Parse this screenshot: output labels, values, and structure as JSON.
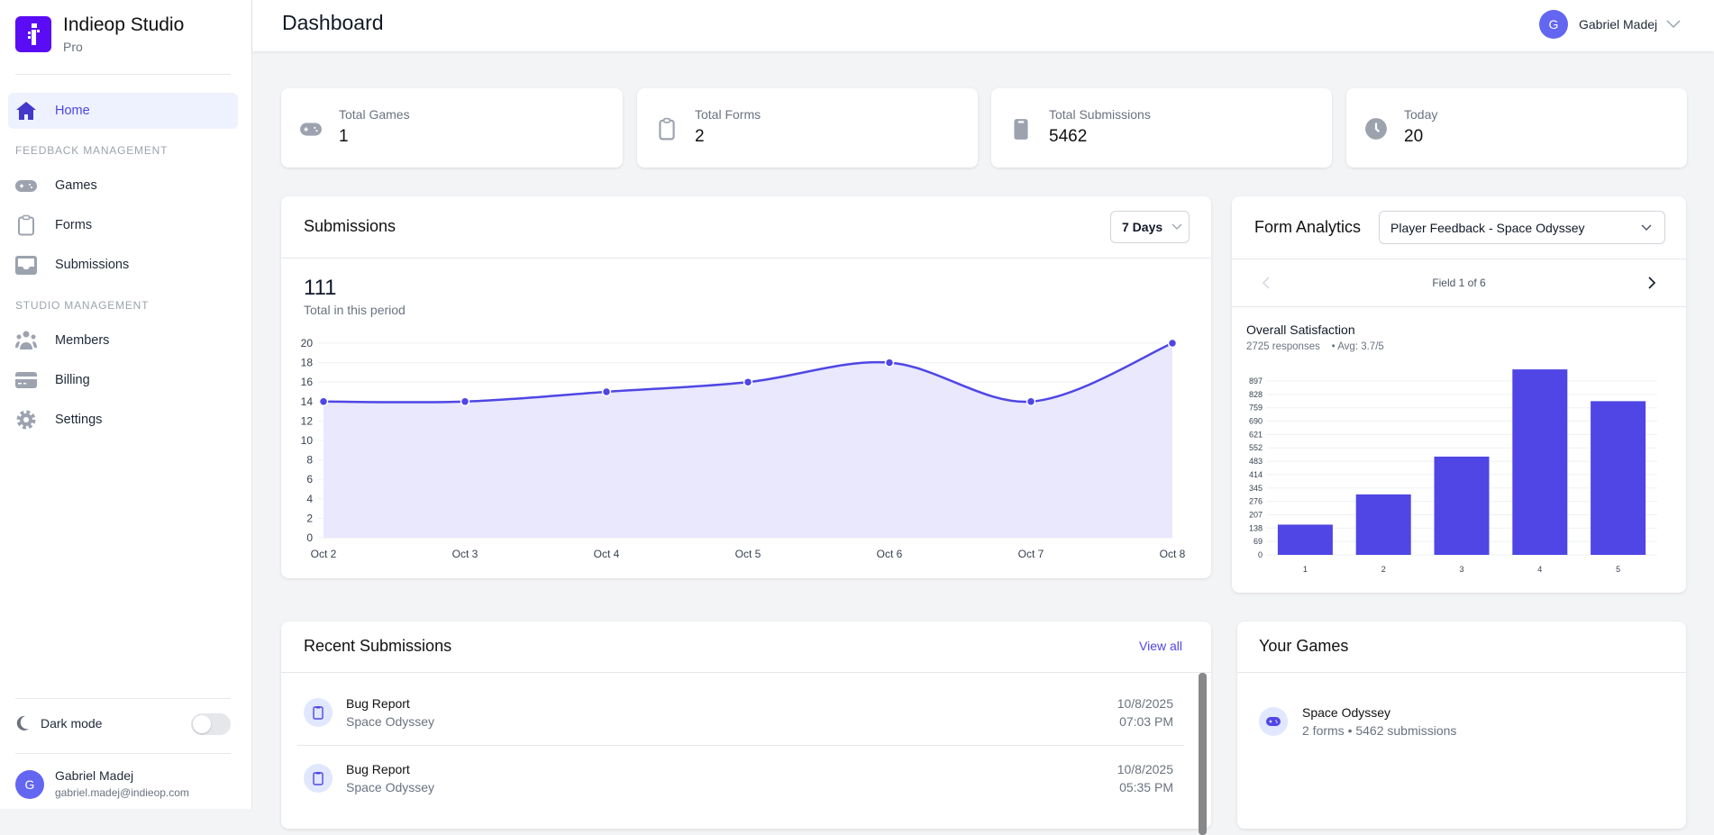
{
  "brand": {
    "name": "Indieop Studio",
    "plan": "Pro"
  },
  "colors": {
    "primary": "#4f46e5",
    "logo": "#5a0df5",
    "avatar": "#6366f1",
    "fill": "#e9e8fc"
  },
  "sidebar": {
    "home": {
      "label": "Home",
      "icon": "home-icon"
    },
    "sections": [
      "FEEDBACK MANAGEMENT",
      "STUDIO MANAGEMENT"
    ],
    "feedback_items": [
      {
        "label": "Games",
        "icon": "gamepad-icon"
      },
      {
        "label": "Forms",
        "icon": "clipboard-icon"
      },
      {
        "label": "Submissions",
        "icon": "inbox-icon"
      }
    ],
    "studio_items": [
      {
        "label": "Members",
        "icon": "users-icon"
      },
      {
        "label": "Billing",
        "icon": "credit-card-icon"
      },
      {
        "label": "Settings",
        "icon": "gear-icon"
      }
    ],
    "dark_mode": {
      "label": "Dark mode",
      "enabled": false
    },
    "user": {
      "initial": "G",
      "name": "Gabriel Madej",
      "email": "gabriel.madej@indieop.com"
    }
  },
  "header": {
    "title": "Dashboard",
    "user": {
      "initial": "G",
      "name": "Gabriel Madej"
    }
  },
  "stats": [
    {
      "label": "Total Games",
      "value": "1",
      "icon": "gamepad-icon"
    },
    {
      "label": "Total Forms",
      "value": "2",
      "icon": "clipboard-icon"
    },
    {
      "label": "Total Submissions",
      "value": "5462",
      "icon": "clipboard-filled-icon"
    },
    {
      "label": "Today",
      "value": "20",
      "icon": "clock-icon"
    }
  ],
  "submissions": {
    "title": "Submissions",
    "range": "7 Days",
    "total": "111",
    "total_label": "Total in this period"
  },
  "form_analytics": {
    "title": "Form Analytics",
    "selected_form": "Player Feedback - Space Odyssey",
    "field_nav": "Field 1 of 6",
    "field_title": "Overall Satisfaction",
    "responses": "2725 responses",
    "avg": "• Avg: 3.7/5"
  },
  "chart_data": [
    {
      "type": "area",
      "categories": [
        "Oct 2",
        "Oct 3",
        "Oct 4",
        "Oct 5",
        "Oct 6",
        "Oct 7",
        "Oct 8"
      ],
      "values": [
        14,
        14,
        15,
        16,
        18,
        14,
        20
      ],
      "ylim": [
        0,
        20
      ],
      "yticks": [
        0,
        2,
        4,
        6,
        8,
        10,
        12,
        14,
        16,
        18,
        20
      ],
      "grid": true
    },
    {
      "type": "bar",
      "categories": [
        "1",
        "2",
        "3",
        "4",
        "5"
      ],
      "values": [
        156,
        312,
        507,
        957,
        793
      ],
      "ylim": [
        0,
        966
      ],
      "yticks": [
        0,
        69,
        138,
        207,
        276,
        345,
        414,
        483,
        552,
        621,
        690,
        759,
        828,
        897
      ],
      "grid": true
    }
  ],
  "recent": {
    "title": "Recent Submissions",
    "view_all": "View all",
    "items": [
      {
        "title": "Bug Report",
        "game": "Space Odyssey",
        "date": "10/8/2025",
        "time": "07:03 PM"
      },
      {
        "title": "Bug Report",
        "game": "Space Odyssey",
        "date": "10/8/2025",
        "time": "05:35 PM"
      }
    ]
  },
  "games": {
    "title": "Your Games",
    "items": [
      {
        "name": "Space Odyssey",
        "meta": "2 forms • 5462 submissions"
      }
    ]
  }
}
